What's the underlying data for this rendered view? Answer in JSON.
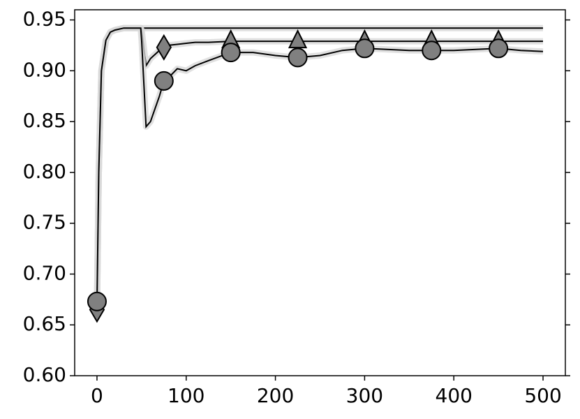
{
  "chart_data": {
    "type": "line",
    "x": [
      0,
      2,
      5,
      10,
      15,
      20,
      30,
      40,
      49,
      50,
      55,
      60,
      70,
      75,
      80,
      90,
      100,
      110,
      125,
      150,
      175,
      200,
      225,
      250,
      275,
      300,
      325,
      350,
      375,
      400,
      425,
      450,
      475,
      500
    ],
    "series": [
      {
        "color": "#000000",
        "values": [
          0.67,
          0.8,
          0.9,
          0.93,
          0.938,
          0.94,
          0.942,
          0.942,
          0.942,
          0.942,
          0.942,
          0.942,
          0.942,
          0.942,
          0.942,
          0.942,
          0.942,
          0.942,
          0.942,
          0.942,
          0.942,
          0.942,
          0.942,
          0.942,
          0.942,
          0.942,
          0.942,
          0.942,
          0.942,
          0.942,
          0.942,
          0.942,
          0.942,
          0.942
        ]
      },
      {
        "color": "#000000",
        "marker_color": "#808080",
        "values": [
          0.665,
          0.8,
          0.9,
          0.93,
          0.938,
          0.94,
          0.942,
          0.942,
          0.942,
          0.94,
          0.905,
          0.912,
          0.92,
          0.923,
          0.925,
          0.926,
          0.927,
          0.928,
          0.928,
          0.929,
          0.929,
          0.929,
          0.929,
          0.929,
          0.929,
          0.929,
          0.929,
          0.929,
          0.929,
          0.929,
          0.929,
          0.929,
          0.929,
          0.929
        ],
        "marker_x": [
          0,
          75,
          150,
          225,
          300,
          375,
          450
        ],
        "markers": [
          "diamond",
          "diamond",
          "triangle",
          "triangle",
          "triangle",
          "triangle",
          "triangle"
        ]
      },
      {
        "color": "#000000",
        "marker_color": "#808080",
        "values": [
          0.673,
          0.8,
          0.9,
          0.93,
          0.938,
          0.94,
          0.942,
          0.942,
          0.942,
          0.93,
          0.845,
          0.85,
          0.875,
          0.89,
          0.893,
          0.902,
          0.9,
          0.905,
          0.91,
          0.918,
          0.918,
          0.915,
          0.913,
          0.915,
          0.92,
          0.922,
          0.921,
          0.92,
          0.92,
          0.92,
          0.921,
          0.922,
          0.92,
          0.919
        ],
        "marker_x": [
          0,
          75,
          150,
          225,
          300,
          375,
          450
        ],
        "markers": [
          "circle",
          "circle",
          "circle",
          "circle",
          "circle",
          "circle",
          "circle"
        ]
      }
    ],
    "xlim": [
      -25,
      525
    ],
    "xticks": [
      0,
      100,
      200,
      300,
      400,
      500
    ],
    "ylim": [
      0.6,
      0.96
    ],
    "yticks": [
      {
        "value": 0.6,
        "label": "0.60"
      },
      0.65,
      {
        "value": 0.7,
        "label": "0.70"
      },
      0.75,
      {
        "value": 0.8,
        "label": "0.80"
      },
      0.85,
      {
        "value": 0.9,
        "label": "0.90"
      },
      0.95
    ]
  }
}
